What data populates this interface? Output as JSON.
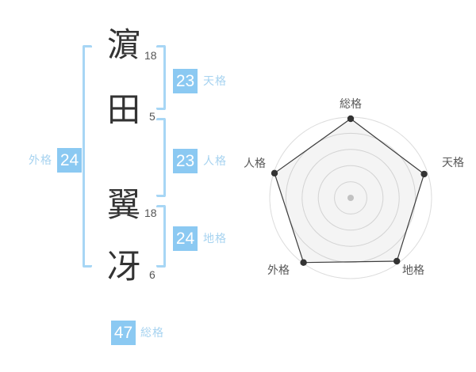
{
  "page": {
    "background": "#ffffff"
  },
  "name_panel": {
    "chars": [
      {
        "glyph": "濵",
        "strokes": "18"
      },
      {
        "glyph": "田",
        "strokes": "5"
      },
      {
        "glyph": "翼",
        "strokes": "18"
      },
      {
        "glyph": "冴",
        "strokes": "6"
      }
    ],
    "badges": {
      "tenkaku": {
        "value": "23",
        "label": "天格"
      },
      "jinkaku": {
        "value": "23",
        "label": "人格"
      },
      "chikaku": {
        "value": "24",
        "label": "地格"
      },
      "gaikaku": {
        "value": "24",
        "label": "外格"
      },
      "soukaku": {
        "value": "47",
        "label": "総格"
      }
    },
    "colors": {
      "badge_bg": "#8bc9f2",
      "badge_text": "#ffffff",
      "badge_label": "#a7d3f0",
      "bracket": "#a7d6f5",
      "stroke_number": "#555555",
      "glyph": "#333333"
    }
  },
  "chart_data": {
    "type": "radar",
    "title": "",
    "categories": [
      "総格",
      "天格",
      "地格",
      "外格",
      "人格"
    ],
    "values": [
      47,
      23,
      24,
      24,
      23
    ],
    "radius_fraction": [
      0.98,
      0.955,
      0.97,
      0.99,
      0.99
    ],
    "rings": 5,
    "grid_shape": "circular",
    "max_radius_px": 102,
    "legend": "none",
    "colors": {
      "grid": "#dcdcdc",
      "outline": "#3c3c3c",
      "fill": "rgba(60,60,60,0.06)",
      "point": "#333333",
      "center_dot": "#c2c2c2",
      "label": "#595959"
    }
  }
}
